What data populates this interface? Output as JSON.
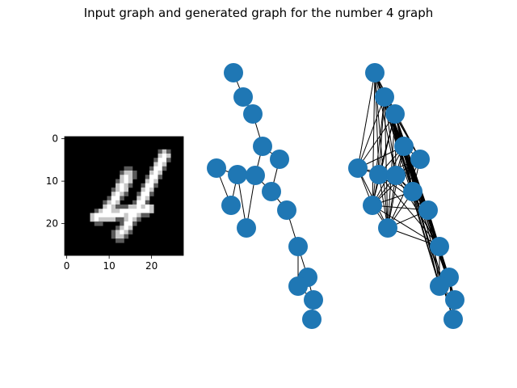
{
  "title": "Input graph and generated graph for the number 4 graph",
  "image_panel": {
    "size": 28,
    "xticks": [
      "0",
      "10",
      "20"
    ],
    "yticks": [
      "0",
      "10",
      "20"
    ]
  },
  "colors": {
    "node": "#1f77b4",
    "edge": "#000000",
    "background": "#000000"
  },
  "input_graph": {
    "node_count": 20,
    "edge_count": 20
  },
  "generated_graph": {
    "node_count": 20,
    "edge_count": 78
  }
}
